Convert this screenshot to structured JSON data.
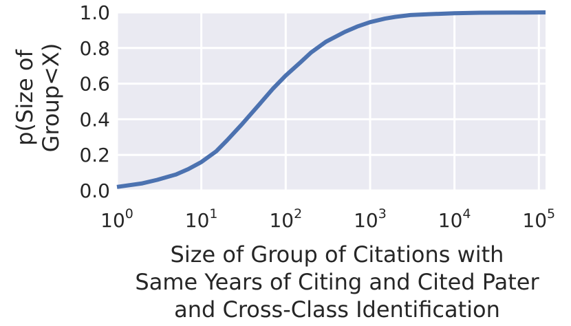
{
  "chart_data": {
    "type": "line",
    "title": "",
    "xlabel_lines": [
      "Size of Group of Citations with",
      "Same Years of Citing and Cited Pater",
      "and Cross-Class Identification"
    ],
    "ylabel_lines": [
      "p(Size of",
      "Group<X)"
    ],
    "x_scale": "log",
    "xlim": [
      1,
      120000
    ],
    "ylim": [
      0.0,
      1.0
    ],
    "x_ticks": [
      {
        "base": "10",
        "exp": "0",
        "value": 1
      },
      {
        "base": "10",
        "exp": "1",
        "value": 10
      },
      {
        "base": "10",
        "exp": "2",
        "value": 100
      },
      {
        "base": "10",
        "exp": "3",
        "value": 1000
      },
      {
        "base": "10",
        "exp": "4",
        "value": 10000
      },
      {
        "base": "10",
        "exp": "5",
        "value": 100000
      }
    ],
    "y_ticks": [
      {
        "label": "0.0",
        "value": 0.0
      },
      {
        "label": "0.2",
        "value": 0.2
      },
      {
        "label": "0.4",
        "value": 0.4
      },
      {
        "label": "0.6",
        "value": 0.6
      },
      {
        "label": "0.8",
        "value": 0.8
      },
      {
        "label": "1.0",
        "value": 1.0
      }
    ],
    "grid": true,
    "colors": {
      "line": "#4c72b0",
      "plot_bg": "#eaeaf2",
      "grid": "#ffffff",
      "text": "#262626"
    },
    "series": [
      {
        "x": [
          1,
          2,
          3,
          5,
          7,
          10,
          15,
          20,
          30,
          50,
          70,
          100,
          150,
          200,
          300,
          500,
          700,
          1000,
          1500,
          2000,
          3000,
          5000,
          10000,
          20000,
          50000,
          120000
        ],
        "y": [
          0.02,
          0.04,
          0.06,
          0.09,
          0.12,
          0.16,
          0.22,
          0.28,
          0.37,
          0.49,
          0.57,
          0.645,
          0.72,
          0.775,
          0.835,
          0.89,
          0.92,
          0.945,
          0.965,
          0.975,
          0.985,
          0.99,
          0.995,
          0.998,
          0.999,
          1.0
        ]
      }
    ]
  }
}
